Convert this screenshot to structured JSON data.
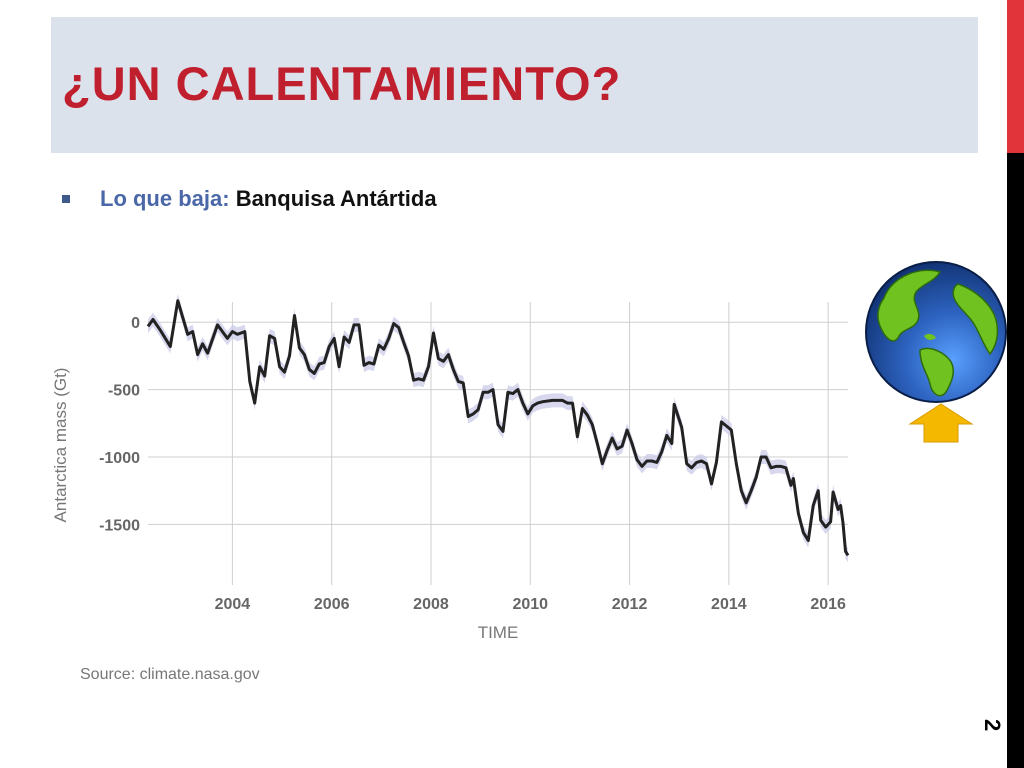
{
  "slide": {
    "title": "¿UN CALENTAMIENTO?",
    "bullet_label": "Lo que baja:",
    "bullet_value": "Banquisa Antártida",
    "page_number": "2",
    "colors": {
      "title": "#c0202e",
      "accent_bar": "#e0333a",
      "arrow": "#f5b800",
      "line": "#222222",
      "band": "#c9cbe8"
    }
  },
  "chart_data": {
    "type": "line",
    "title": "",
    "xlabel": "TIME",
    "ylabel": "Antarctica mass (Gt)",
    "xlim": [
      2002.3,
      2016.4
    ],
    "ylim": [
      -1950,
      150
    ],
    "x_ticks": [
      2004,
      2006,
      2008,
      2010,
      2012,
      2014,
      2016
    ],
    "y_ticks": [
      0,
      -500,
      -1000,
      -1500
    ],
    "grid": true,
    "source": "Source: climate.nasa.gov",
    "series": [
      {
        "values": [
          [
            2002.3,
            -30
          ],
          [
            2002.4,
            20
          ],
          [
            2002.55,
            -60
          ],
          [
            2002.75,
            -180
          ],
          [
            2002.9,
            160
          ],
          [
            2003.1,
            -90
          ],
          [
            2003.2,
            -70
          ],
          [
            2003.3,
            -240
          ],
          [
            2003.4,
            -160
          ],
          [
            2003.5,
            -230
          ],
          [
            2003.7,
            -20
          ],
          [
            2003.9,
            -120
          ],
          [
            2004.0,
            -70
          ],
          [
            2004.1,
            -90
          ],
          [
            2004.25,
            -70
          ],
          [
            2004.35,
            -440
          ],
          [
            2004.45,
            -600
          ],
          [
            2004.55,
            -330
          ],
          [
            2004.65,
            -400
          ],
          [
            2004.75,
            -100
          ],
          [
            2004.85,
            -120
          ],
          [
            2004.95,
            -330
          ],
          [
            2005.05,
            -370
          ],
          [
            2005.15,
            -250
          ],
          [
            2005.25,
            50
          ],
          [
            2005.35,
            -190
          ],
          [
            2005.45,
            -240
          ],
          [
            2005.55,
            -350
          ],
          [
            2005.65,
            -380
          ],
          [
            2005.75,
            -310
          ],
          [
            2005.85,
            -300
          ],
          [
            2005.95,
            -180
          ],
          [
            2006.05,
            -120
          ],
          [
            2006.15,
            -330
          ],
          [
            2006.25,
            -110
          ],
          [
            2006.35,
            -150
          ],
          [
            2006.45,
            -20
          ],
          [
            2006.55,
            -20
          ],
          [
            2006.65,
            -320
          ],
          [
            2006.75,
            -300
          ],
          [
            2006.85,
            -310
          ],
          [
            2006.95,
            -170
          ],
          [
            2007.05,
            -200
          ],
          [
            2007.15,
            -120
          ],
          [
            2007.25,
            -10
          ],
          [
            2007.35,
            -40
          ],
          [
            2007.45,
            -150
          ],
          [
            2007.55,
            -250
          ],
          [
            2007.65,
            -430
          ],
          [
            2007.75,
            -420
          ],
          [
            2007.85,
            -430
          ],
          [
            2007.95,
            -330
          ],
          [
            2008.05,
            -80
          ],
          [
            2008.15,
            -270
          ],
          [
            2008.25,
            -290
          ],
          [
            2008.35,
            -240
          ],
          [
            2008.45,
            -350
          ],
          [
            2008.55,
            -440
          ],
          [
            2008.65,
            -450
          ],
          [
            2008.75,
            -700
          ],
          [
            2008.85,
            -680
          ],
          [
            2008.95,
            -650
          ],
          [
            2009.05,
            -520
          ],
          [
            2009.15,
            -520
          ],
          [
            2009.25,
            -500
          ],
          [
            2009.35,
            -760
          ],
          [
            2009.45,
            -810
          ],
          [
            2009.55,
            -520
          ],
          [
            2009.65,
            -530
          ],
          [
            2009.75,
            -500
          ],
          [
            2009.85,
            -600
          ],
          [
            2009.95,
            -680
          ],
          [
            2010.05,
            -620
          ],
          [
            2010.15,
            -600
          ],
          [
            2010.25,
            -590
          ],
          [
            2010.45,
            -580
          ],
          [
            2010.65,
            -580
          ],
          [
            2010.75,
            -600
          ],
          [
            2010.85,
            -600
          ],
          [
            2010.95,
            -850
          ],
          [
            2011.05,
            -640
          ],
          [
            2011.15,
            -690
          ],
          [
            2011.25,
            -760
          ],
          [
            2011.35,
            -900
          ],
          [
            2011.45,
            -1050
          ],
          [
            2011.55,
            -950
          ],
          [
            2011.65,
            -860
          ],
          [
            2011.75,
            -940
          ],
          [
            2011.85,
            -920
          ],
          [
            2011.95,
            -800
          ],
          [
            2012.05,
            -900
          ],
          [
            2012.15,
            -1020
          ],
          [
            2012.25,
            -1070
          ],
          [
            2012.35,
            -1030
          ],
          [
            2012.45,
            -1030
          ],
          [
            2012.55,
            -1040
          ],
          [
            2012.65,
            -960
          ],
          [
            2012.75,
            -840
          ],
          [
            2012.85,
            -900
          ],
          [
            2012.9,
            -610
          ],
          [
            2013.05,
            -780
          ],
          [
            2013.15,
            -1050
          ],
          [
            2013.25,
            -1080
          ],
          [
            2013.35,
            -1040
          ],
          [
            2013.45,
            -1030
          ],
          [
            2013.55,
            -1050
          ],
          [
            2013.65,
            -1200
          ],
          [
            2013.75,
            -1040
          ],
          [
            2013.85,
            -740
          ],
          [
            2013.95,
            -770
          ],
          [
            2014.05,
            -800
          ],
          [
            2014.15,
            -1050
          ],
          [
            2014.25,
            -1250
          ],
          [
            2014.35,
            -1340
          ],
          [
            2014.45,
            -1250
          ],
          [
            2014.55,
            -1150
          ],
          [
            2014.65,
            -1000
          ],
          [
            2014.75,
            -1000
          ],
          [
            2014.85,
            -1080
          ],
          [
            2014.95,
            -1070
          ],
          [
            2015.05,
            -1070
          ],
          [
            2015.15,
            -1080
          ],
          [
            2015.25,
            -1210
          ],
          [
            2015.3,
            -1160
          ],
          [
            2015.4,
            -1420
          ],
          [
            2015.5,
            -1560
          ],
          [
            2015.6,
            -1620
          ],
          [
            2015.7,
            -1360
          ],
          [
            2015.8,
            -1250
          ],
          [
            2015.85,
            -1470
          ],
          [
            2015.95,
            -1520
          ],
          [
            2016.05,
            -1480
          ],
          [
            2016.1,
            -1260
          ],
          [
            2016.2,
            -1390
          ],
          [
            2016.25,
            -1360
          ],
          [
            2016.3,
            -1490
          ],
          [
            2016.35,
            -1700
          ],
          [
            2016.4,
            -1730
          ]
        ]
      }
    ]
  }
}
